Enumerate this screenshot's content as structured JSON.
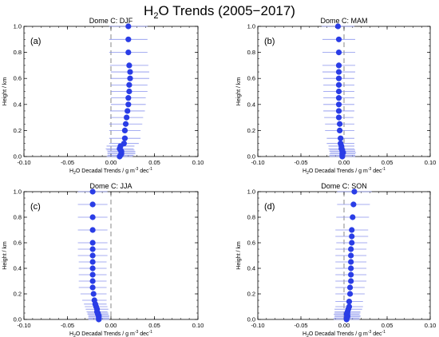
{
  "figure": {
    "title_pre": "H",
    "title_sub": "2",
    "title_post": "O Trends (2005−2017)"
  },
  "chart_data": [
    {
      "type": "scatter",
      "panel_label": "(a)",
      "title": "Dome C: DJF",
      "xlabel_pre": "H",
      "xlabel_sub": "2",
      "xlabel_mid": "O Decadal Trends / g m",
      "xlabel_sup": "-3",
      "xlabel_post": " dec",
      "xlabel_sup2": "-1",
      "ylabel": "Height / km",
      "xlim": [
        -0.1,
        0.1
      ],
      "ylim": [
        0.0,
        1.0
      ],
      "xticks": [
        "-0.10",
        "-0.05",
        "0.00",
        "0.05",
        "0.10"
      ],
      "yticks": [
        "0.0",
        "0.2",
        "0.4",
        "0.6",
        "0.8",
        "1.0"
      ],
      "zero_line": 0.0,
      "color": "#2a3de6",
      "points": [
        {
          "y": 0.0,
          "x": 0.01,
          "err": 0.015
        },
        {
          "y": 0.01,
          "x": 0.011,
          "err": 0.015
        },
        {
          "y": 0.02,
          "x": 0.012,
          "err": 0.016
        },
        {
          "y": 0.03,
          "x": 0.012,
          "err": 0.016
        },
        {
          "y": 0.04,
          "x": 0.012,
          "err": 0.016
        },
        {
          "y": 0.05,
          "x": 0.011,
          "err": 0.016
        },
        {
          "y": 0.06,
          "x": 0.01,
          "err": 0.016
        },
        {
          "y": 0.08,
          "x": 0.011,
          "err": 0.016
        },
        {
          "y": 0.1,
          "x": 0.015,
          "err": 0.017
        },
        {
          "y": 0.14,
          "x": 0.016,
          "err": 0.018
        },
        {
          "y": 0.2,
          "x": 0.016,
          "err": 0.018
        },
        {
          "y": 0.25,
          "x": 0.017,
          "err": 0.019
        },
        {
          "y": 0.3,
          "x": 0.018,
          "err": 0.019
        },
        {
          "y": 0.35,
          "x": 0.019,
          "err": 0.02
        },
        {
          "y": 0.4,
          "x": 0.02,
          "err": 0.02
        },
        {
          "y": 0.45,
          "x": 0.02,
          "err": 0.02
        },
        {
          "y": 0.5,
          "x": 0.021,
          "err": 0.021
        },
        {
          "y": 0.55,
          "x": 0.021,
          "err": 0.021
        },
        {
          "y": 0.6,
          "x": 0.022,
          "err": 0.022
        },
        {
          "y": 0.65,
          "x": 0.022,
          "err": 0.022
        },
        {
          "y": 0.7,
          "x": 0.021,
          "err": 0.022
        },
        {
          "y": 0.8,
          "x": 0.02,
          "err": 0.022
        },
        {
          "y": 0.9,
          "x": 0.02,
          "err": 0.022
        },
        {
          "y": 1.0,
          "x": 0.02,
          "err": 0.022
        }
      ]
    },
    {
      "type": "scatter",
      "panel_label": "(b)",
      "title": "Dome C: MAM",
      "xlabel_pre": "H",
      "xlabel_sub": "2",
      "xlabel_mid": "O Decadal Trends / g m",
      "xlabel_sup": "-3",
      "xlabel_post": " dec",
      "xlabel_sup2": "-1",
      "ylabel": "Height / km",
      "xlim": [
        -0.1,
        0.1
      ],
      "ylim": [
        0.0,
        1.0
      ],
      "xticks": [
        "-0.10",
        "-0.05",
        "0.00",
        "0.05",
        "0.10"
      ],
      "yticks": [
        "0.0",
        "0.2",
        "0.4",
        "0.6",
        "0.8",
        "1.0"
      ],
      "zero_line": 0.0,
      "color": "#2a3de6",
      "points": [
        {
          "y": 0.0,
          "x": -0.002,
          "err": 0.015
        },
        {
          "y": 0.01,
          "x": -0.002,
          "err": 0.015
        },
        {
          "y": 0.02,
          "x": -0.002,
          "err": 0.015
        },
        {
          "y": 0.03,
          "x": -0.001,
          "err": 0.015
        },
        {
          "y": 0.04,
          "x": -0.002,
          "err": 0.015
        },
        {
          "y": 0.05,
          "x": -0.002,
          "err": 0.015
        },
        {
          "y": 0.06,
          "x": -0.003,
          "err": 0.015
        },
        {
          "y": 0.08,
          "x": -0.003,
          "err": 0.015
        },
        {
          "y": 0.1,
          "x": -0.004,
          "err": 0.016
        },
        {
          "y": 0.14,
          "x": -0.004,
          "err": 0.016
        },
        {
          "y": 0.2,
          "x": -0.005,
          "err": 0.017
        },
        {
          "y": 0.25,
          "x": -0.005,
          "err": 0.017
        },
        {
          "y": 0.3,
          "x": -0.006,
          "err": 0.017
        },
        {
          "y": 0.35,
          "x": -0.006,
          "err": 0.018
        },
        {
          "y": 0.4,
          "x": -0.006,
          "err": 0.018
        },
        {
          "y": 0.45,
          "x": -0.006,
          "err": 0.018
        },
        {
          "y": 0.5,
          "x": -0.006,
          "err": 0.018
        },
        {
          "y": 0.55,
          "x": -0.006,
          "err": 0.018
        },
        {
          "y": 0.6,
          "x": -0.006,
          "err": 0.018
        },
        {
          "y": 0.65,
          "x": -0.006,
          "err": 0.019
        },
        {
          "y": 0.7,
          "x": -0.006,
          "err": 0.019
        },
        {
          "y": 0.8,
          "x": -0.006,
          "err": 0.019
        },
        {
          "y": 0.9,
          "x": -0.006,
          "err": 0.019
        },
        {
          "y": 1.0,
          "x": -0.007,
          "err": 0.019
        }
      ]
    },
    {
      "type": "scatter",
      "panel_label": "(c)",
      "title": "Dome C: JJA",
      "xlabel_pre": "H",
      "xlabel_sub": "2",
      "xlabel_mid": "O Decadal Trends / g m",
      "xlabel_sup": "-3",
      "xlabel_post": " dec",
      "xlabel_sup2": "-1",
      "ylabel": "Height / km",
      "xlim": [
        -0.1,
        0.1
      ],
      "ylim": [
        0.0,
        1.0
      ],
      "xticks": [
        "-0.10",
        "-0.05",
        "0.00",
        "0.05",
        "0.10"
      ],
      "yticks": [
        "0.0",
        "0.2",
        "0.4",
        "0.6",
        "0.8",
        "1.0"
      ],
      "zero_line": 0.0,
      "color": "#2a3de6",
      "points": [
        {
          "y": 0.0,
          "x": -0.014,
          "err": 0.012
        },
        {
          "y": 0.01,
          "x": -0.014,
          "err": 0.012
        },
        {
          "y": 0.02,
          "x": -0.014,
          "err": 0.012
        },
        {
          "y": 0.03,
          "x": -0.014,
          "err": 0.012
        },
        {
          "y": 0.04,
          "x": -0.015,
          "err": 0.012
        },
        {
          "y": 0.05,
          "x": -0.015,
          "err": 0.012
        },
        {
          "y": 0.06,
          "x": -0.016,
          "err": 0.012
        },
        {
          "y": 0.08,
          "x": -0.016,
          "err": 0.013
        },
        {
          "y": 0.1,
          "x": -0.017,
          "err": 0.013
        },
        {
          "y": 0.12,
          "x": -0.018,
          "err": 0.013
        },
        {
          "y": 0.15,
          "x": -0.019,
          "err": 0.014
        },
        {
          "y": 0.2,
          "x": -0.02,
          "err": 0.015
        },
        {
          "y": 0.25,
          "x": -0.021,
          "err": 0.016
        },
        {
          "y": 0.3,
          "x": -0.021,
          "err": 0.016
        },
        {
          "y": 0.35,
          "x": -0.021,
          "err": 0.016
        },
        {
          "y": 0.4,
          "x": -0.021,
          "err": 0.016
        },
        {
          "y": 0.45,
          "x": -0.021,
          "err": 0.016
        },
        {
          "y": 0.5,
          "x": -0.021,
          "err": 0.017
        },
        {
          "y": 0.55,
          "x": -0.021,
          "err": 0.017
        },
        {
          "y": 0.6,
          "x": -0.021,
          "err": 0.017
        },
        {
          "y": 0.7,
          "x": -0.021,
          "err": 0.017
        },
        {
          "y": 0.8,
          "x": -0.021,
          "err": 0.017
        },
        {
          "y": 0.9,
          "x": -0.021,
          "err": 0.017
        },
        {
          "y": 1.0,
          "x": -0.021,
          "err": 0.017
        }
      ]
    },
    {
      "type": "scatter",
      "panel_label": "(d)",
      "title": "Dome C: SON",
      "xlabel_pre": "H",
      "xlabel_sub": "2",
      "xlabel_mid": "O Decadal Trends / g m",
      "xlabel_sup": "-3",
      "xlabel_post": " dec",
      "xlabel_sup2": "-1",
      "ylabel": "Height / km",
      "xlim": [
        -0.1,
        0.1
      ],
      "ylim": [
        0.0,
        1.0
      ],
      "xticks": [
        "-0.10",
        "-0.05",
        "0.00",
        "0.05",
        "0.10"
      ],
      "yticks": [
        "0.0",
        "0.2",
        "0.4",
        "0.6",
        "0.8",
        "1.0"
      ],
      "zero_line": 0.0,
      "color": "#2a3de6",
      "points": [
        {
          "y": 0.0,
          "x": 0.003,
          "err": 0.015
        },
        {
          "y": 0.01,
          "x": 0.003,
          "err": 0.015
        },
        {
          "y": 0.02,
          "x": 0.004,
          "err": 0.015
        },
        {
          "y": 0.03,
          "x": 0.004,
          "err": 0.015
        },
        {
          "y": 0.04,
          "x": 0.003,
          "err": 0.015
        },
        {
          "y": 0.05,
          "x": 0.004,
          "err": 0.015
        },
        {
          "y": 0.06,
          "x": 0.004,
          "err": 0.015
        },
        {
          "y": 0.08,
          "x": 0.005,
          "err": 0.016
        },
        {
          "y": 0.1,
          "x": 0.006,
          "err": 0.016
        },
        {
          "y": 0.14,
          "x": 0.006,
          "err": 0.016
        },
        {
          "y": 0.2,
          "x": 0.007,
          "err": 0.017
        },
        {
          "y": 0.25,
          "x": 0.007,
          "err": 0.017
        },
        {
          "y": 0.3,
          "x": 0.008,
          "err": 0.018
        },
        {
          "y": 0.35,
          "x": 0.008,
          "err": 0.018
        },
        {
          "y": 0.4,
          "x": 0.008,
          "err": 0.018
        },
        {
          "y": 0.45,
          "x": 0.008,
          "err": 0.018
        },
        {
          "y": 0.5,
          "x": 0.008,
          "err": 0.018
        },
        {
          "y": 0.55,
          "x": 0.008,
          "err": 0.018
        },
        {
          "y": 0.6,
          "x": 0.009,
          "err": 0.018
        },
        {
          "y": 0.65,
          "x": 0.009,
          "err": 0.019
        },
        {
          "y": 0.7,
          "x": 0.009,
          "err": 0.019
        },
        {
          "y": 0.8,
          "x": 0.01,
          "err": 0.019
        },
        {
          "y": 0.9,
          "x": 0.011,
          "err": 0.019
        },
        {
          "y": 1.0,
          "x": 0.012,
          "err": 0.02
        }
      ]
    }
  ]
}
